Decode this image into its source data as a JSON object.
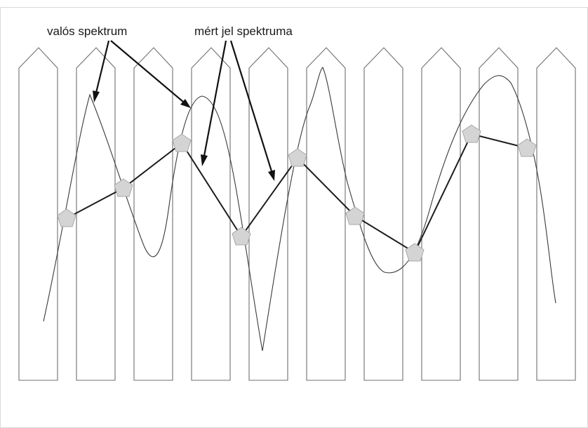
{
  "labels": {
    "true_spectrum": "valós spektrum",
    "measured_spectrum": "mért jel spektruma"
  },
  "colors": {
    "fence_stroke": "#6f6f6f",
    "true_curve": "#3a3a3a",
    "measured_line": "#1c1c1c",
    "marker_fill": "#d4d4d4"
  }
}
